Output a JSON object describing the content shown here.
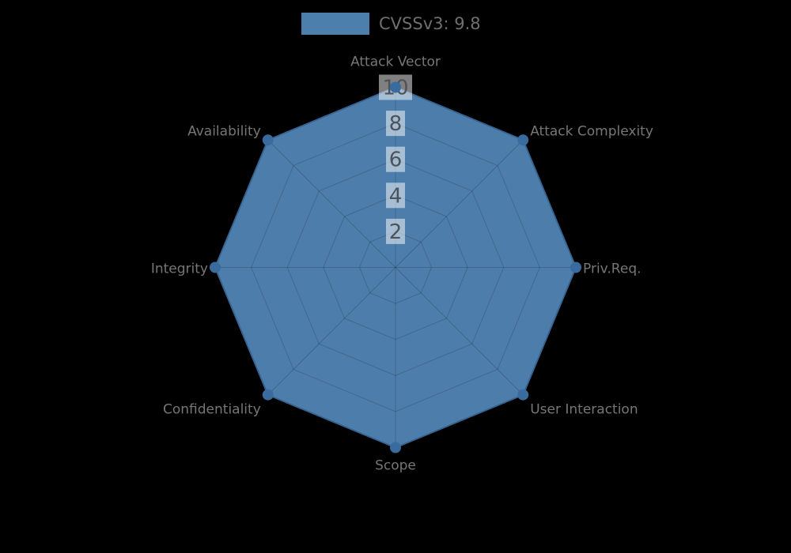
{
  "legend": {
    "label": "CVSSv3: 9.8",
    "swatch_color": "#4d7fac"
  },
  "chart_data": {
    "type": "radar",
    "title": "",
    "categories": [
      "Attack Vector",
      "Attack Complexity",
      "Priv.Req.",
      "User Interaction",
      "Scope",
      "Confidentiality",
      "Integrity",
      "Availability"
    ],
    "series": [
      {
        "name": "CVSSv3: 9.8",
        "values": [
          10,
          10,
          10,
          10,
          10,
          10,
          10,
          10
        ]
      }
    ],
    "radial_ticks": [
      "2",
      "4",
      "6",
      "8",
      "10"
    ],
    "rlim": [
      0,
      10
    ],
    "grid": true,
    "legend_position": "top-center",
    "colors": {
      "fill": "#4d7eab",
      "edge": "#4173a5",
      "marker": "#3a6b9e",
      "grid_line": "rgba(0,0,0,0.18)",
      "tick_box": "rgba(255,255,255,0.5)",
      "tick_text": "#4d535b",
      "category_label": "#767676",
      "legend_text": "#6f6f6f",
      "background": "#000000"
    }
  }
}
